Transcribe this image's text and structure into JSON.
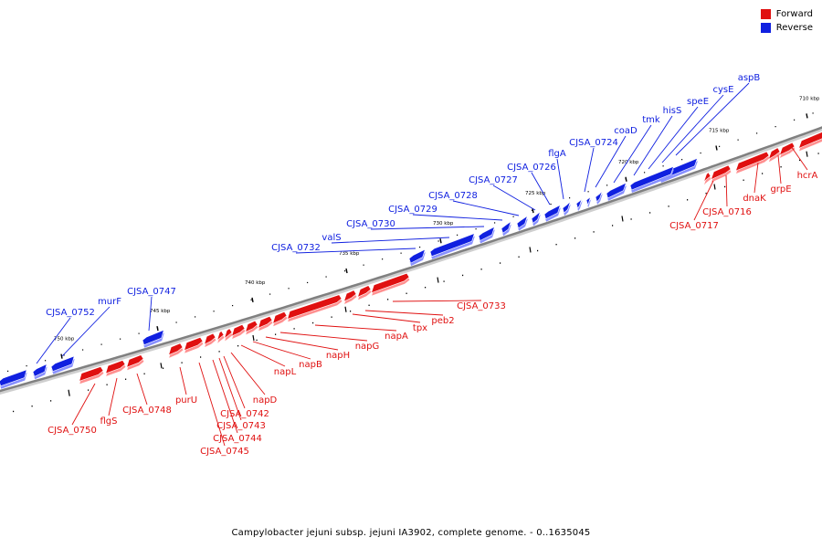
{
  "colors": {
    "forward": "#e01010",
    "reverse": "#1020e0",
    "backbone": "#808080"
  },
  "legend": [
    {
      "label": "Forward",
      "color": "#e01010"
    },
    {
      "label": "Reverse",
      "color": "#1020e0"
    }
  ],
  "footer": {
    "title": "Campylobacter jejuni subsp. jejuni IA3902, complete genome. - 0..1635045"
  },
  "ticks": {
    "labels": [
      {
        "kbp": 710,
        "text": "710 kbp"
      },
      {
        "kbp": 715,
        "text": "715 kbp"
      },
      {
        "kbp": 720,
        "text": "720 kbp"
      },
      {
        "kbp": 725,
        "text": "725 kbp"
      },
      {
        "kbp": 730,
        "text": "730 kbp"
      },
      {
        "kbp": 735,
        "text": "735 kbp"
      },
      {
        "kbp": 740,
        "text": "740 kbp"
      },
      {
        "kbp": 745,
        "text": "745 kbp"
      },
      {
        "kbp": 750,
        "text": "750 kbp"
      }
    ]
  },
  "genes": {
    "reverse": [
      {
        "label": "aspB"
      },
      {
        "label": "cysE"
      },
      {
        "label": "speE"
      },
      {
        "label": "hisS"
      },
      {
        "label": "tmk"
      },
      {
        "label": "coaD"
      },
      {
        "label": "CJSA_0724"
      },
      {
        "label": "flgA"
      },
      {
        "label": "CJSA_0726"
      },
      {
        "label": "CJSA_0727"
      },
      {
        "label": "CJSA_0728"
      },
      {
        "label": "CJSA_0729"
      },
      {
        "label": "CJSA_0730"
      },
      {
        "label": "valS"
      },
      {
        "label": "CJSA_0732"
      },
      {
        "label": "CJSA_0747"
      },
      {
        "label": "murF"
      },
      {
        "label": "CJSA_0752"
      }
    ],
    "forward": [
      {
        "label": "hcrA"
      },
      {
        "label": "grpE"
      },
      {
        "label": "dnaK"
      },
      {
        "label": "CJSA_0716"
      },
      {
        "label": "CJSA_0717"
      },
      {
        "label": "CJSA_0733"
      },
      {
        "label": "peb2"
      },
      {
        "label": "tpx"
      },
      {
        "label": "napA"
      },
      {
        "label": "napG"
      },
      {
        "label": "napH"
      },
      {
        "label": "napB"
      },
      {
        "label": "napL"
      },
      {
        "label": "napD"
      },
      {
        "label": "CJSA_0742"
      },
      {
        "label": "CJSA_0743"
      },
      {
        "label": "CJSA_0744"
      },
      {
        "label": "CJSA_0745"
      },
      {
        "label": "purU"
      },
      {
        "label": "CJSA_0748"
      },
      {
        "label": "flgS"
      },
      {
        "label": "CJSA_0750"
      }
    ]
  }
}
